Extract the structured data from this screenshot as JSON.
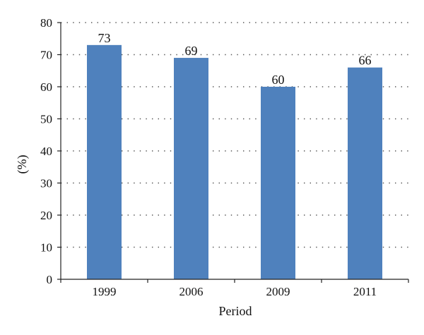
{
  "chart_data": {
    "type": "bar",
    "categories": [
      "1999",
      "2006",
      "2009",
      "2011"
    ],
    "values": [
      73,
      69,
      60,
      66
    ],
    "data_labels": [
      "73",
      "69",
      "60",
      "66"
    ],
    "title": "",
    "xlabel": "Period",
    "ylabel": "(%)",
    "ylim": [
      0,
      80
    ],
    "yticks": [
      0,
      10,
      20,
      30,
      40,
      50,
      60,
      70,
      80
    ],
    "grid": "horizontal dotted",
    "legend": "none",
    "bar_color": "#4f81bd"
  }
}
